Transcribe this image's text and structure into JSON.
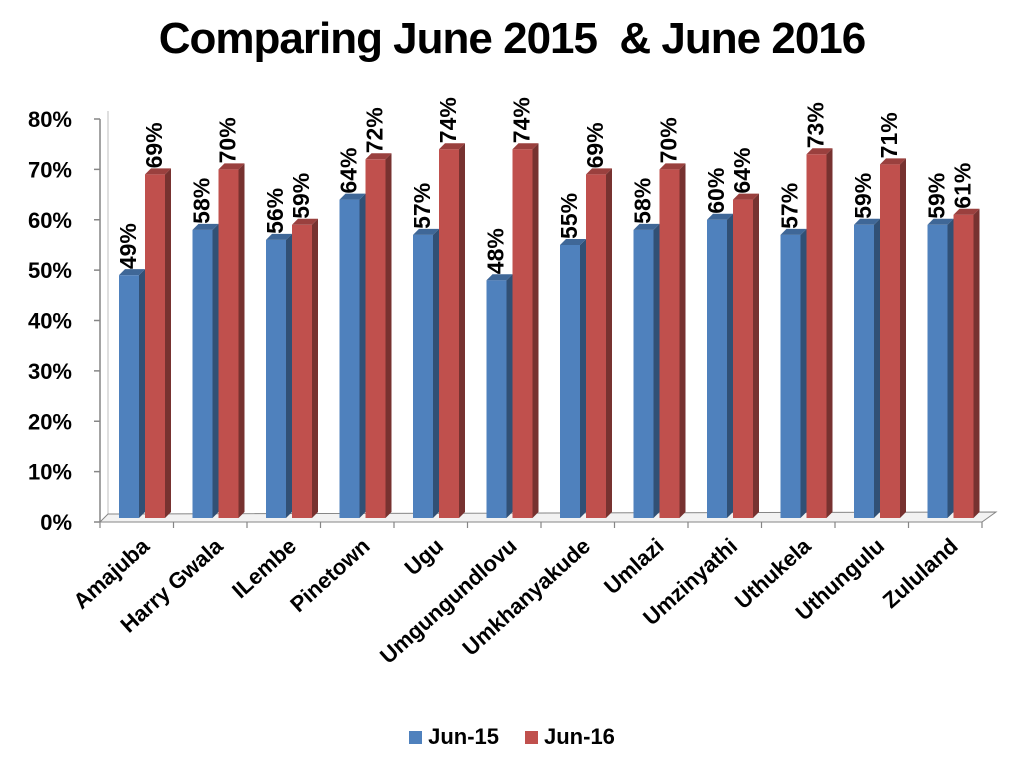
{
  "chart_data": {
    "type": "bar",
    "title": "Comparing June 2015  & June 2016",
    "categories": [
      "Amajuba",
      "Harry Gwala",
      "ILembe",
      "Pinetown",
      "Ugu",
      "Umgungundlovu",
      "Umkhanyakude",
      "Umlazi",
      "Umzinyathi",
      "Uthukela",
      "Uthungulu",
      "Zululand"
    ],
    "series": [
      {
        "name": "Jun-15",
        "color": "#4F81BD",
        "values": [
          49,
          58,
          56,
          64,
          57,
          48,
          55,
          58,
          60,
          57,
          59,
          59
        ],
        "labels": [
          "49%",
          "58%",
          "56%",
          "64%",
          "57%",
          "48%",
          "55%",
          "58%",
          "60%",
          "57%",
          "59%",
          "59%"
        ]
      },
      {
        "name": "Jun-16",
        "color": "#C0504D",
        "values": [
          69,
          70,
          59,
          72,
          74,
          74,
          69,
          70,
          64,
          73,
          71,
          61
        ],
        "labels": [
          "69%",
          "70%",
          "59%",
          "72%",
          "74%",
          "74%",
          "69%",
          "70%",
          "64%",
          "73%",
          "71%",
          "61%"
        ]
      }
    ],
    "ylim": [
      0,
      80
    ],
    "yticks": [
      "0%",
      "10%",
      "20%",
      "30%",
      "40%",
      "50%",
      "60%",
      "70%",
      "80%"
    ],
    "xlabel": "",
    "ylabel": "",
    "grid": false,
    "legend_position": "bottom",
    "style": "3d-clustered-bar"
  }
}
